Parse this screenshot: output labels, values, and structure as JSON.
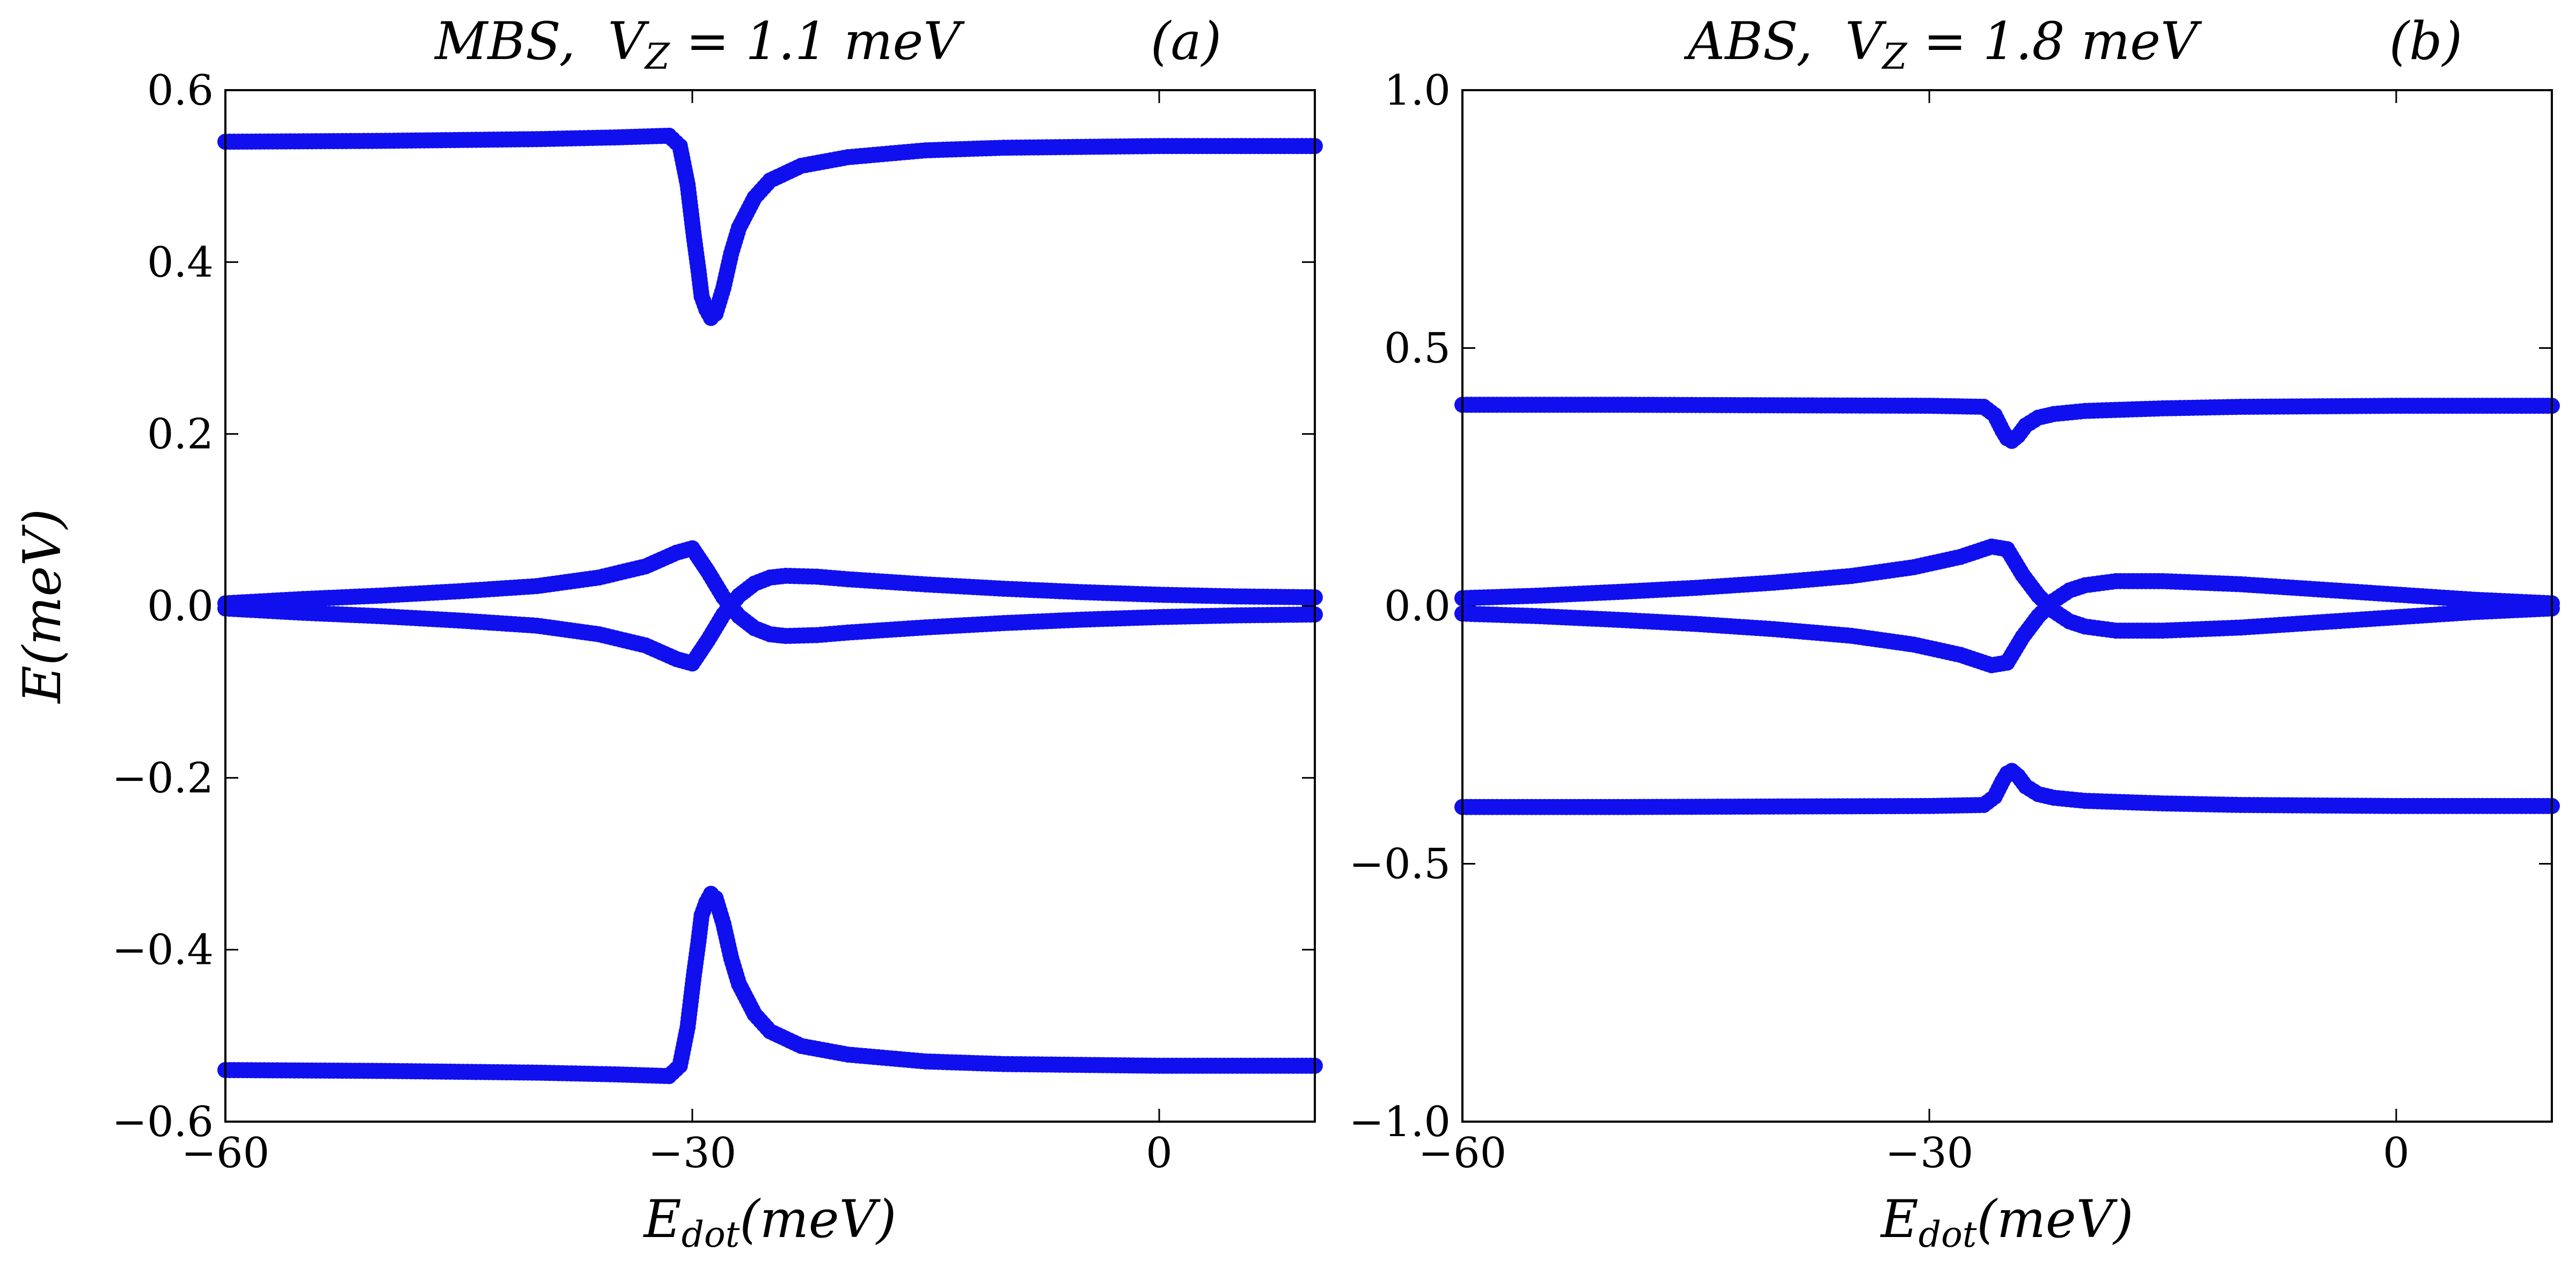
{
  "chart_data": [
    {
      "type": "scatter",
      "panel": "(a)",
      "title": "MBS, V_Z = 1.1 meV",
      "title_prefix": "MBS,",
      "title_var": "V",
      "title_sub": "Z",
      "title_suffix": " = 1.1 meV",
      "xlabel": "E_dot(meV)",
      "xlabel_main": "E",
      "xlabel_sub": "dot",
      "xlabel_rest": "(meV)",
      "ylabel": "E(meV)",
      "xlim": [
        -60,
        10
      ],
      "ylim": [
        -0.6,
        0.6
      ],
      "xticks": [
        -60,
        -30,
        0
      ],
      "xtick_labels": [
        "−60",
        "−30",
        "0"
      ],
      "yticks": [
        -0.6,
        -0.4,
        -0.2,
        0.0,
        0.2,
        0.4,
        0.6
      ],
      "ytick_labels": [
        "−0.6",
        "−0.4",
        "−0.2",
        "0.0",
        "0.2",
        "0.4",
        "0.6"
      ],
      "grid": false,
      "marker_color": "#1010ee",
      "series": [
        {
          "x": [
            -60,
            -50,
            -40,
            -35,
            -31.5,
            -30.8,
            -30.3,
            -29.9,
            -29.6,
            -29.4,
            -29.1,
            -28.8,
            -28.5,
            -28.0,
            -27.5,
            -27.0,
            -26.0,
            -25.0,
            -23.0,
            -20.0,
            -15.0,
            -10.0,
            0,
            10
          ],
          "y": [
            0.54,
            0.541,
            0.543,
            0.545,
            0.547,
            0.535,
            0.49,
            0.43,
            0.39,
            0.36,
            0.345,
            0.335,
            0.34,
            0.37,
            0.41,
            0.44,
            0.475,
            0.495,
            0.512,
            0.522,
            0.53,
            0.533,
            0.535,
            0.535
          ]
        },
        {
          "x": [
            -60,
            -50,
            -40,
            -35,
            -31.5,
            -30.8,
            -30.3,
            -29.9,
            -29.6,
            -29.4,
            -29.1,
            -28.8,
            -28.5,
            -28.0,
            -27.5,
            -27.0,
            -26.0,
            -25.0,
            -23.0,
            -20.0,
            -15.0,
            -10.0,
            0,
            10
          ],
          "y": [
            -0.54,
            -0.541,
            -0.543,
            -0.545,
            -0.547,
            -0.535,
            -0.49,
            -0.43,
            -0.39,
            -0.36,
            -0.345,
            -0.335,
            -0.34,
            -0.37,
            -0.41,
            -0.44,
            -0.475,
            -0.495,
            -0.512,
            -0.522,
            -0.53,
            -0.533,
            -0.535,
            -0.535
          ]
        },
        {
          "x": [
            -60,
            -55,
            -50,
            -45,
            -40,
            -36,
            -33,
            -31,
            -30,
            -29,
            -28,
            -27,
            -26,
            -25,
            -24,
            -22,
            -20,
            -15,
            -10,
            -5,
            0,
            5,
            10
          ],
          "y": [
            0.003,
            0.008,
            0.012,
            0.017,
            0.023,
            0.033,
            0.046,
            0.062,
            0.067,
            0.04,
            0.01,
            -0.012,
            -0.026,
            -0.033,
            -0.035,
            -0.034,
            -0.031,
            -0.025,
            -0.02,
            -0.016,
            -0.013,
            -0.011,
            -0.01
          ]
        },
        {
          "x": [
            -60,
            -55,
            -50,
            -45,
            -40,
            -36,
            -33,
            -31,
            -30,
            -29,
            -28,
            -27,
            -26,
            -25,
            -24,
            -22,
            -20,
            -15,
            -10,
            -5,
            0,
            5,
            10
          ],
          "y": [
            -0.003,
            -0.008,
            -0.012,
            -0.017,
            -0.023,
            -0.033,
            -0.046,
            -0.062,
            -0.067,
            -0.04,
            -0.01,
            0.012,
            0.026,
            0.033,
            0.035,
            0.034,
            0.031,
            0.025,
            0.02,
            0.016,
            0.013,
            0.011,
            0.01
          ]
        }
      ]
    },
    {
      "type": "scatter",
      "panel": "(b)",
      "title": "ABS, V_Z = 1.8 meV",
      "title_prefix": "ABS,",
      "title_var": "V",
      "title_sub": "Z",
      "title_suffix": " = 1.8 meV",
      "xlabel": "E_dot(meV)",
      "xlabel_main": "E",
      "xlabel_sub": "dot",
      "xlabel_rest": "(meV)",
      "ylabel": "",
      "xlim": [
        -60,
        10
      ],
      "ylim": [
        -1.0,
        1.0
      ],
      "xticks": [
        -60,
        -30,
        0
      ],
      "xtick_labels": [
        "−60",
        "−30",
        "0"
      ],
      "yticks": [
        -1.0,
        -0.5,
        0.0,
        0.5,
        1.0
      ],
      "ytick_labels": [
        "−1.0",
        "−0.5",
        "0.0",
        "0.5",
        "1.0"
      ],
      "grid": false,
      "marker_color": "#1010ee",
      "series": [
        {
          "x": [
            -60,
            -50,
            -40,
            -30,
            -26.5,
            -25.8,
            -25.3,
            -25.0,
            -24.7,
            -24.3,
            -23.8,
            -23.0,
            -22.0,
            -20.0,
            -15.0,
            -10.0,
            0,
            10
          ],
          "y": [
            0.39,
            0.39,
            0.389,
            0.388,
            0.386,
            0.37,
            0.34,
            0.325,
            0.32,
            0.33,
            0.35,
            0.365,
            0.372,
            0.378,
            0.383,
            0.386,
            0.388,
            0.388
          ]
        },
        {
          "x": [
            -60,
            -50,
            -40,
            -30,
            -26.5,
            -25.8,
            -25.3,
            -25.0,
            -24.7,
            -24.3,
            -23.8,
            -23.0,
            -22.0,
            -20.0,
            -15.0,
            -10.0,
            0,
            10
          ],
          "y": [
            -0.39,
            -0.39,
            -0.389,
            -0.388,
            -0.386,
            -0.37,
            -0.34,
            -0.325,
            -0.32,
            -0.33,
            -0.35,
            -0.365,
            -0.372,
            -0.378,
            -0.383,
            -0.386,
            -0.388,
            -0.388
          ]
        },
        {
          "x": [
            -60,
            -55,
            -50,
            -45,
            -40,
            -35,
            -31,
            -28,
            -26,
            -25,
            -24,
            -23,
            -22,
            -21,
            -20,
            -18,
            -15,
            -10,
            -5,
            0,
            5,
            10
          ],
          "y": [
            0.015,
            0.02,
            0.027,
            0.035,
            0.045,
            0.058,
            0.075,
            0.095,
            0.115,
            0.11,
            0.06,
            0.02,
            -0.01,
            -0.03,
            -0.04,
            -0.048,
            -0.048,
            -0.042,
            -0.032,
            -0.022,
            -0.012,
            -0.005
          ]
        },
        {
          "x": [
            -60,
            -55,
            -50,
            -45,
            -40,
            -35,
            -31,
            -28,
            -26,
            -25,
            -24,
            -23,
            -22,
            -21,
            -20,
            -18,
            -15,
            -10,
            -5,
            0,
            5,
            10
          ],
          "y": [
            -0.015,
            -0.02,
            -0.027,
            -0.035,
            -0.045,
            -0.058,
            -0.075,
            -0.095,
            -0.115,
            -0.11,
            -0.06,
            -0.02,
            0.01,
            0.03,
            0.04,
            0.048,
            0.048,
            0.042,
            0.032,
            0.022,
            0.012,
            0.005
          ]
        }
      ]
    }
  ]
}
